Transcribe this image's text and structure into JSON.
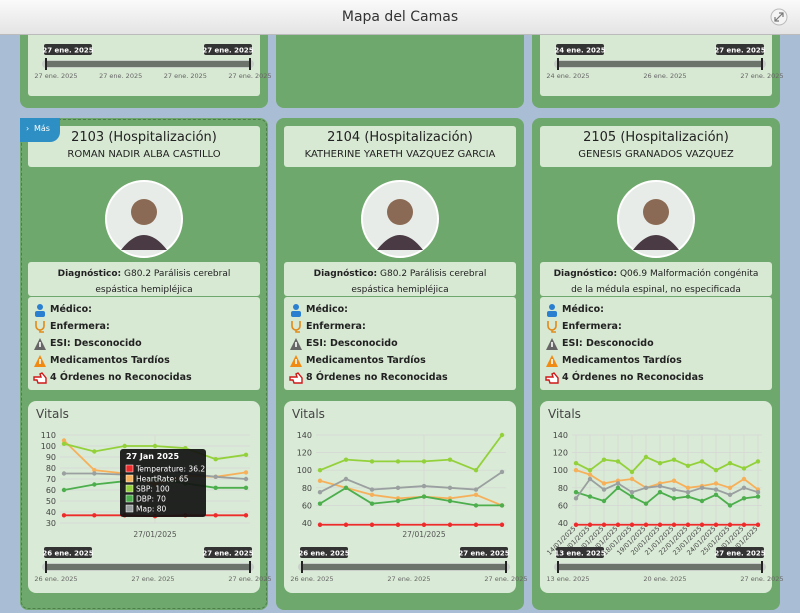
{
  "header": {
    "title": "Mapa del Camas"
  },
  "top_sliders": [
    {
      "start": "27 ene. 2025",
      "end": "27 ene. 2025",
      "axis": [
        "27 ene. 2025",
        "27 ene. 2025",
        "27 ene. 2025",
        "27 ene. 2025"
      ]
    },
    null,
    {
      "start": "24 ene. 2025",
      "end": "27 ene. 2025",
      "axis": [
        "24 ene. 2025",
        "26 ene. 2025",
        "27 ene. 2025"
      ]
    }
  ],
  "beds": [
    {
      "badge": "Más",
      "room": "2103 (Hospitalización)",
      "patient": "ROMAN NADIR ALBA CASTILLO",
      "diagnosis_label": "Diagnóstico:",
      "diagnosis": "G80.2 Parálisis cerebral espástica hemipléjica",
      "info": [
        "Médico:",
        "Enfermera:",
        "ESI: Desconocido",
        "Medicamentos Tardíos",
        "4 Órdenes no Reconocidas"
      ],
      "vitals": {
        "title": "Vitals",
        "chart": {
          "type": "line",
          "categories": [
            null,
            null,
            null,
            "27/01/2025",
            null,
            null,
            null
          ],
          "ylim": [
            30,
            110
          ],
          "yticks": [
            30,
            40,
            50,
            60,
            70,
            80,
            90,
            100,
            110
          ],
          "grid": true,
          "series": [
            {
              "name": "Temperature",
              "color": "#ee2b2b",
              "values": [
                37,
                37,
                37,
                36.2,
                37,
                37,
                37
              ]
            },
            {
              "name": "HeartRate",
              "color": "#f7b05a",
              "values": [
                105,
                78,
                75,
                65,
                73,
                72,
                76
              ]
            },
            {
              "name": "SBP",
              "color": "#93d13a",
              "values": [
                102,
                95,
                100,
                100,
                98,
                88,
                92
              ]
            },
            {
              "name": "DBP",
              "color": "#4cae4c",
              "values": [
                60,
                65,
                68,
                70,
                66,
                62,
                62
              ]
            },
            {
              "name": "Map",
              "color": "#9aa0a0",
              "values": [
                75,
                75,
                74,
                80,
                75,
                72,
                70
              ]
            }
          ]
        },
        "tooltip": {
          "title": "27 Jan 2025",
          "items": [
            "Temperature: 36.2",
            "HeartRate: 65",
            "SBP: 100",
            "DBP: 70",
            "Map: 80"
          ]
        }
      },
      "slider": {
        "start": "26 ene. 2025",
        "end": "27 ene. 2025",
        "axis": [
          "26 ene. 2025",
          "27 ene. 2025",
          "27 ene. 2025"
        ]
      }
    },
    {
      "room": "2104 (Hospitalización)",
      "patient": "KATHERINE YARETH VAZQUEZ GARCIA",
      "diagnosis_label": "Diagnóstico:",
      "diagnosis": "G80.2 Parálisis cerebral espástica hemipléjica",
      "info": [
        "Médico:",
        "Enfermera:",
        "ESI: Desconocido",
        "Medicamentos Tardíos",
        "8 Órdenes no Reconocidas"
      ],
      "vitals": {
        "title": "Vitals",
        "chart": {
          "type": "line",
          "categories": [
            null,
            null,
            null,
            null,
            "27/01/2025",
            null,
            null,
            null
          ],
          "ylim": [
            40,
            140
          ],
          "yticks": [
            40,
            60,
            80,
            100,
            120,
            140
          ],
          "grid": true,
          "series": [
            {
              "name": "Temperature",
              "color": "#ee2b2b",
              "values": [
                38,
                38,
                38,
                38,
                38,
                38,
                38,
                38
              ]
            },
            {
              "name": "HeartRate",
              "color": "#f7b05a",
              "values": [
                88,
                80,
                72,
                68,
                70,
                68,
                72,
                60
              ]
            },
            {
              "name": "SBP",
              "color": "#93d13a",
              "values": [
                100,
                112,
                110,
                110,
                110,
                112,
                100,
                140
              ]
            },
            {
              "name": "DBP",
              "color": "#4cae4c",
              "values": [
                62,
                80,
                62,
                65,
                70,
                65,
                60,
                60
              ]
            },
            {
              "name": "Map",
              "color": "#9aa0a0",
              "values": [
                75,
                90,
                78,
                80,
                82,
                80,
                78,
                98
              ]
            }
          ]
        }
      },
      "slider": {
        "start": "26 ene. 2025",
        "end": "27 ene. 2025",
        "axis": [
          "26 ene. 2025",
          "27 ene. 2025",
          "27 ene. 2025"
        ]
      }
    },
    {
      "room": "2105 (Hospitalización)",
      "patient": "GENESIS GRANADOS VAZQUEZ",
      "diagnosis_label": "Diagnóstico:",
      "diagnosis": "Q06.9 Malformación congénita de la médula espinal, no especificada",
      "info": [
        "Médico:",
        "Enfermera:",
        "ESI: Desconocido",
        "Medicamentos Tardíos",
        "4 Órdenes no Reconocidas"
      ],
      "vitals": {
        "title": "Vitals",
        "chart": {
          "type": "line",
          "rotate_labels": true,
          "categories": [
            "14/01/2025",
            "15/01/2025",
            "16/01/2025",
            "17/01/2025",
            "18/01/2025",
            "19/01/2025",
            "20/01/2025",
            "21/01/2025",
            "22/01/2025",
            "23/01/2025",
            "24/01/2025",
            "25/01/2025",
            "26/01/2025",
            "27/01/2025"
          ],
          "ylim": [
            40,
            140
          ],
          "yticks": [
            40,
            60,
            80,
            100,
            120,
            140
          ],
          "grid": true,
          "series": [
            {
              "name": "Temperature",
              "color": "#ee2b2b",
              "values": [
                38,
                38,
                38,
                38,
                38,
                38,
                38,
                38,
                38,
                38,
                38,
                38,
                38,
                38
              ]
            },
            {
              "name": "HeartRate",
              "color": "#f7b05a",
              "values": [
                100,
                95,
                85,
                88,
                90,
                80,
                85,
                88,
                80,
                82,
                85,
                80,
                90,
                78
              ]
            },
            {
              "name": "SBP",
              "color": "#93d13a",
              "values": [
                108,
                100,
                112,
                110,
                98,
                115,
                108,
                112,
                105,
                110,
                100,
                108,
                102,
                110
              ]
            },
            {
              "name": "DBP",
              "color": "#4cae4c",
              "values": [
                75,
                70,
                65,
                80,
                70,
                62,
                75,
                68,
                70,
                65,
                72,
                60,
                68,
                70
              ]
            },
            {
              "name": "Map",
              "color": "#9aa0a0",
              "values": [
                68,
                90,
                78,
                85,
                75,
                80,
                82,
                78,
                75,
                80,
                78,
                72,
                80,
                75
              ]
            }
          ]
        }
      },
      "slider": {
        "start": "13 ene. 2025",
        "end": "27 ene. 2025",
        "axis": [
          "13 ene. 2025",
          "20 ene. 2025",
          "27 ene. 2025"
        ]
      }
    }
  ]
}
